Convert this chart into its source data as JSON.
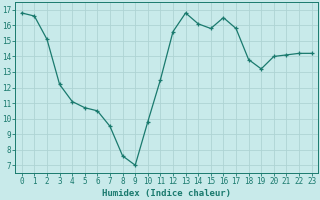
{
  "x": [
    0,
    1,
    2,
    3,
    4,
    5,
    6,
    7,
    8,
    9,
    10,
    11,
    12,
    13,
    14,
    15,
    16,
    17,
    18,
    19,
    20,
    21,
    22,
    23
  ],
  "y": [
    16.8,
    16.6,
    15.1,
    12.2,
    11.1,
    10.7,
    10.5,
    9.5,
    7.6,
    7.0,
    9.8,
    12.5,
    15.6,
    16.8,
    16.1,
    15.8,
    16.5,
    15.8,
    13.8,
    13.2,
    14.0,
    14.1,
    14.2,
    14.2
  ],
  "line_color": "#1a7a6e",
  "marker": "+",
  "bg_color": "#c8eaea",
  "grid_color": "#aed4d4",
  "xlabel": "Humidex (Indice chaleur)",
  "ylabel_ticks": [
    7,
    8,
    9,
    10,
    11,
    12,
    13,
    14,
    15,
    16,
    17
  ],
  "ylim": [
    6.5,
    17.5
  ],
  "xlim": [
    -0.5,
    23.5
  ],
  "tick_color": "#1a7a6e",
  "label_color": "#1a7a6e",
  "font_size": 5.5,
  "xlabel_fontsize": 6.5,
  "linewidth": 0.9,
  "markersize": 3.0
}
